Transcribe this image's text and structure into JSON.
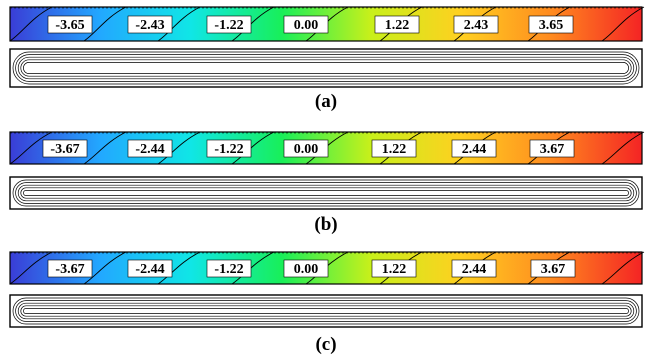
{
  "panels": [
    {
      "label": "(a)",
      "contour_labels": [
        "-3.65",
        "-2.43",
        "-1.22",
        "0.00",
        "1.22",
        "2.43",
        "3.65"
      ]
    },
    {
      "label": "(b)",
      "contour_labels": [
        "-3.67",
        "-2.44",
        "-1.22",
        "0.00",
        "1.22",
        "2.44",
        "3.67"
      ]
    },
    {
      "label": "(c)",
      "contour_labels": [
        "-3.67",
        "-2.44",
        "-1.22",
        "0.00",
        "1.22",
        "2.44",
        "3.67"
      ]
    }
  ],
  "colors": {
    "gradient": [
      "#3a3dd6",
      "#22a8ff",
      "#10e6e6",
      "#18ef5a",
      "#c8f01a",
      "#ffd020",
      "#ff8a1f",
      "#f42424"
    ],
    "contour_line": "#000000",
    "label_box": "#ffffff"
  }
}
